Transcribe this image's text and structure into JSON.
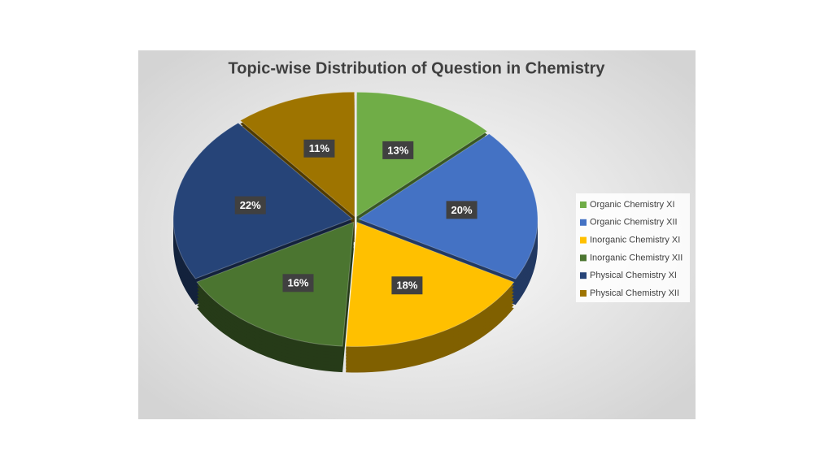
{
  "chart_data": {
    "type": "pie",
    "title": "Topic-wise Distribution of Question in Chemistry",
    "categories": [
      "Organic Chemistry XI",
      "Organic Chemistry XII",
      "Inorganic Chemistry XI",
      "Inorganic Chemistry XII",
      "Physical Chemistry XI",
      "Physical Chemistry XII"
    ],
    "values": [
      13,
      20,
      18,
      16,
      22,
      11
    ],
    "value_labels": [
      "13%",
      "20%",
      "18%",
      "16%",
      "22%",
      "11%"
    ],
    "colors": [
      "#70ad47",
      "#4472c4",
      "#ffc000",
      "#4b7530",
      "#264478",
      "#9e7400"
    ],
    "legend": "right"
  }
}
